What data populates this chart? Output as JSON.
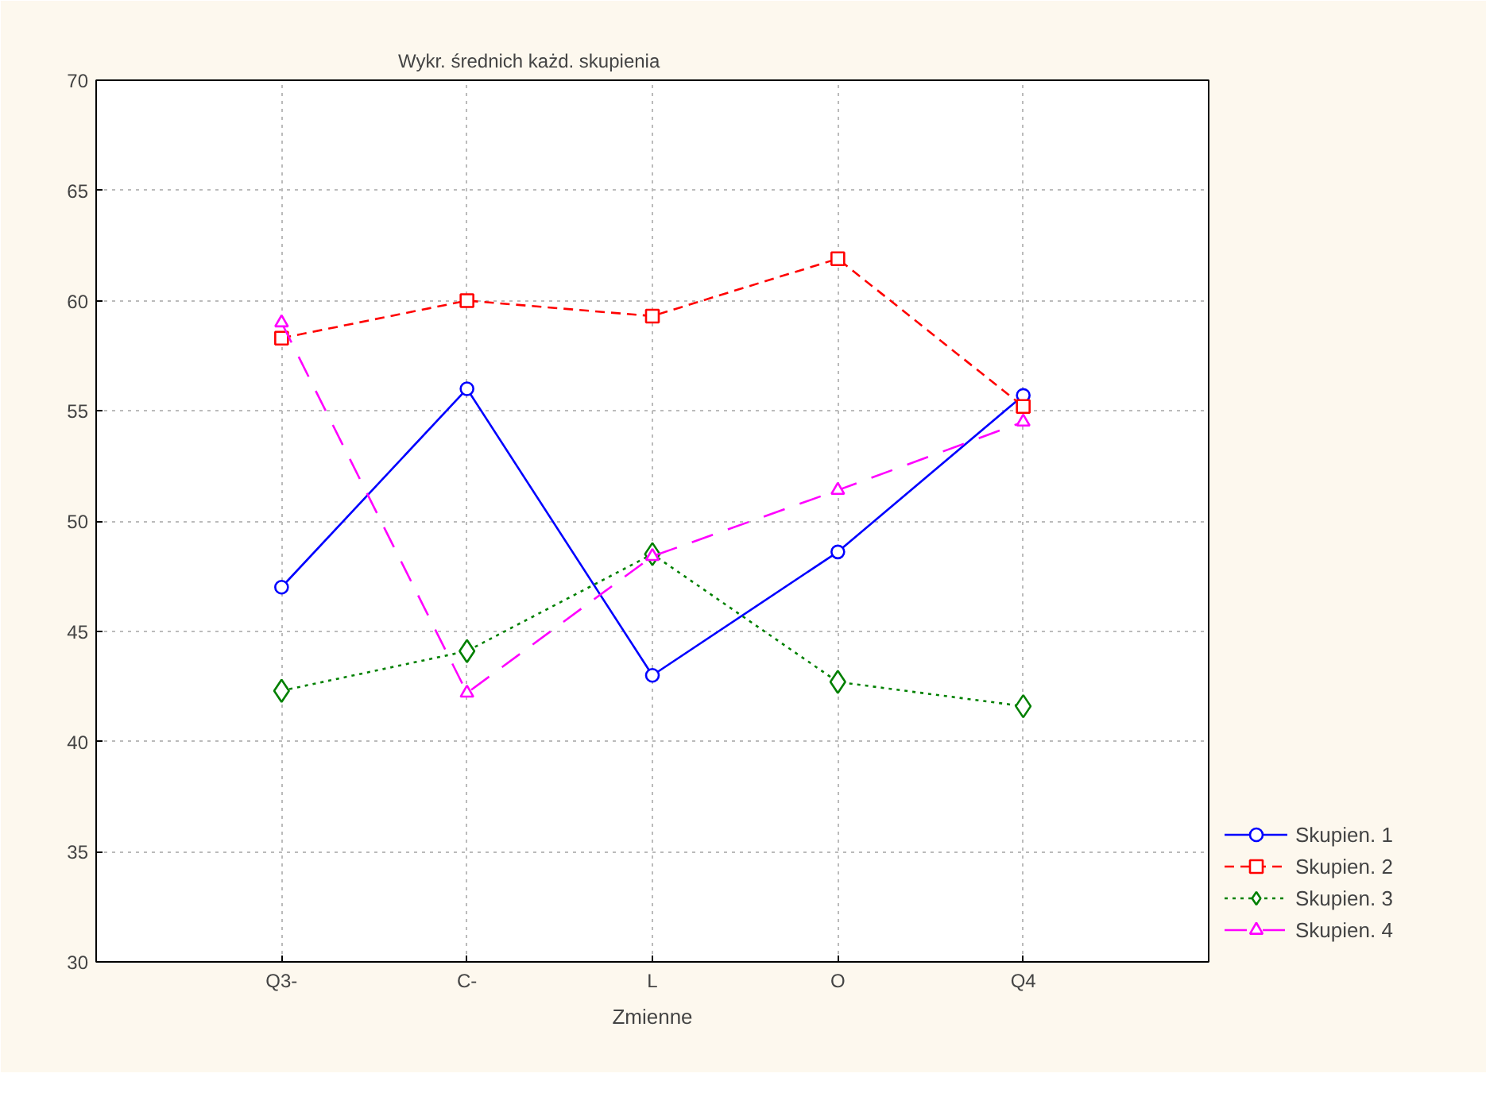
{
  "chart_data": {
    "type": "line",
    "title": "Wykr. średnich każd. skupienia",
    "xlabel": "Zmienne",
    "categories": [
      "Q3-",
      "C-",
      "L",
      "O",
      "Q4"
    ],
    "series": [
      {
        "name": "Skupien. 1",
        "color": "#0000ff",
        "marker": "circle",
        "line_style": "solid",
        "values": [
          47.0,
          56.0,
          43.0,
          48.6,
          55.7
        ]
      },
      {
        "name": "Skupien. 2",
        "color": "#ff0000",
        "marker": "square",
        "line_style": "dashed",
        "values": [
          58.3,
          60.0,
          59.3,
          61.9,
          55.2
        ]
      },
      {
        "name": "Skupien. 3",
        "color": "#008000",
        "marker": "diamond",
        "line_style": "dotted",
        "values": [
          42.3,
          44.1,
          48.5,
          42.7,
          41.6
        ]
      },
      {
        "name": "Skupien. 4",
        "color": "#ff00ff",
        "marker": "triangle",
        "line_style": "dashed",
        "values": [
          59.0,
          42.2,
          48.4,
          51.4,
          54.5
        ]
      }
    ],
    "ylim": [
      30,
      70
    ],
    "yticks": [
      30,
      35,
      40,
      45,
      50,
      55,
      60,
      65,
      70
    ],
    "grid": true,
    "legend": "bottom right"
  }
}
